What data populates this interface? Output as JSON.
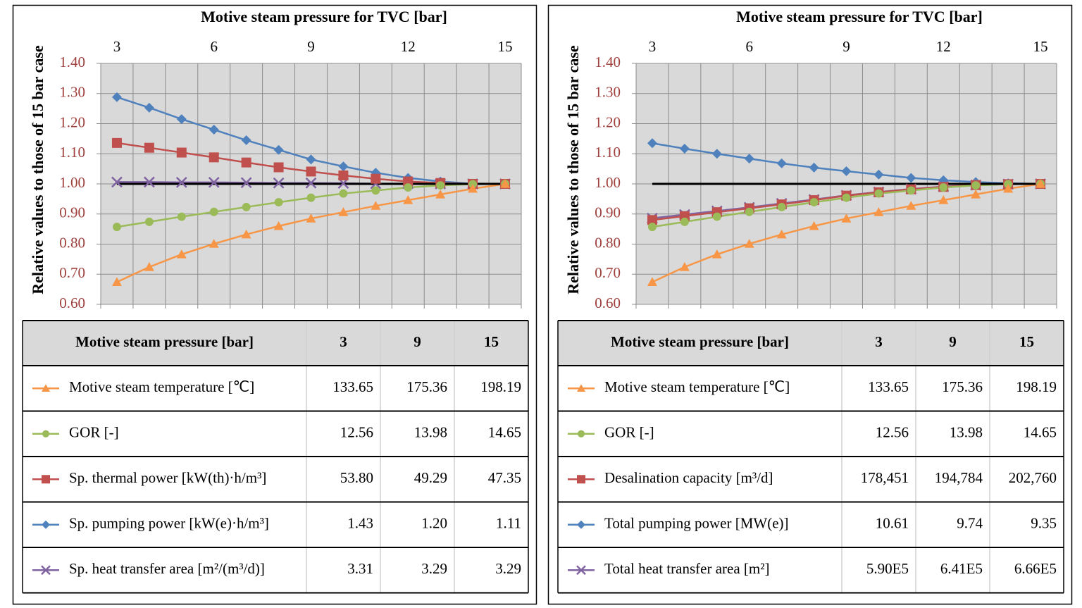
{
  "chart_data": [
    {
      "type": "line",
      "title": "Motive steam pressure for TVC [bar]",
      "y_label": "Relative values to those of 15 bar case",
      "x": [
        3,
        4,
        5,
        6,
        7,
        8,
        9,
        10,
        11,
        12,
        13,
        14,
        15
      ],
      "xlim": [
        2.5,
        15.5
      ],
      "xticks": [
        3,
        6,
        9,
        12,
        15
      ],
      "ylim": [
        0.6,
        1.4
      ],
      "yticks": [
        {
          "value": 0.6,
          "label": "0.60"
        },
        {
          "value": 0.7,
          "label": "0.70"
        },
        {
          "value": 0.8,
          "label": "0.80"
        },
        {
          "value": 0.9,
          "label": "0.90"
        },
        {
          "value": 1.0,
          "label": "1.00"
        },
        {
          "value": 1.1,
          "label": "1.10"
        },
        {
          "value": 1.2,
          "label": "1.20"
        },
        {
          "value": 1.3,
          "label": "1.30"
        },
        {
          "value": 1.4,
          "label": "1.40"
        }
      ],
      "grid": true,
      "hline": {
        "value": 1.0,
        "color": "#000000"
      },
      "series": [
        {
          "name": "Motive steam temperature [℃]",
          "color": "#f79646",
          "marker": "triangle",
          "values": [
            0.674,
            0.724,
            0.766,
            0.801,
            0.832,
            0.86,
            0.885,
            0.906,
            0.927,
            0.946,
            0.965,
            0.984,
            1.0
          ]
        },
        {
          "name": "GOR [-]",
          "color": "#9bbb59",
          "marker": "circle",
          "values": [
            0.857,
            0.874,
            0.891,
            0.907,
            0.923,
            0.939,
            0.954,
            0.968,
            0.978,
            0.988,
            0.995,
            0.999,
            1.0
          ]
        },
        {
          "name": "Sp. thermal power [kW(th)·h/m³]",
          "color": "#c0504d",
          "marker": "square",
          "values": [
            1.136,
            1.12,
            1.104,
            1.088,
            1.071,
            1.055,
            1.041,
            1.028,
            1.017,
            1.008,
            1.003,
            1.0,
            1.0
          ]
        },
        {
          "name": "Sp. pumping power [kW(e)·h/m³]",
          "color": "#4f81bd",
          "marker": "diamond",
          "values": [
            1.288,
            1.253,
            1.215,
            1.18,
            1.145,
            1.113,
            1.081,
            1.058,
            1.037,
            1.02,
            1.008,
            1.0,
            1.0
          ]
        },
        {
          "name": "Sp. heat transfer area [m²/(m³/d)]",
          "color": "#8064a2",
          "marker": "x",
          "values": [
            1.006,
            1.006,
            1.005,
            1.005,
            1.004,
            1.003,
            1.003,
            1.002,
            1.001,
            1.001,
            1.0,
            1.0,
            1.0
          ]
        }
      ],
      "table": {
        "header": [
          "Motive steam pressure [bar]",
          "3",
          "9",
          "15"
        ],
        "rows": [
          [
            "133.65",
            "175.36",
            "198.19"
          ],
          [
            "12.56",
            "13.98",
            "14.65"
          ],
          [
            "53.80",
            "49.29",
            "47.35"
          ],
          [
            "1.43",
            "1.20",
            "1.11"
          ],
          [
            "3.31",
            "3.29",
            "3.29"
          ]
        ]
      }
    },
    {
      "type": "line",
      "title": "Motive steam pressure for TVC [bar]",
      "y_label": "Relative values to those of 15 bar case",
      "x": [
        3,
        4,
        5,
        6,
        7,
        8,
        9,
        10,
        11,
        12,
        13,
        14,
        15
      ],
      "xlim": [
        2.5,
        15.5
      ],
      "xticks": [
        3,
        6,
        9,
        12,
        15
      ],
      "ylim": [
        0.6,
        1.4
      ],
      "yticks": [
        {
          "value": 0.6,
          "label": "0.60"
        },
        {
          "value": 0.7,
          "label": "0.70"
        },
        {
          "value": 0.8,
          "label": "0.80"
        },
        {
          "value": 0.9,
          "label": "0.90"
        },
        {
          "value": 1.0,
          "label": "1.00"
        },
        {
          "value": 1.1,
          "label": "1.10"
        },
        {
          "value": 1.2,
          "label": "1.20"
        },
        {
          "value": 1.3,
          "label": "1.30"
        },
        {
          "value": 1.4,
          "label": "1.40"
        }
      ],
      "grid": true,
      "hline": {
        "value": 1.0,
        "color": "#000000"
      },
      "series": [
        {
          "name": "Motive steam temperature [℃]",
          "color": "#f79646",
          "marker": "triangle",
          "values": [
            0.674,
            0.724,
            0.766,
            0.801,
            0.832,
            0.86,
            0.885,
            0.906,
            0.927,
            0.946,
            0.965,
            0.984,
            1.0
          ]
        },
        {
          "name": "GOR [-]",
          "color": "#9bbb59",
          "marker": "circle",
          "values": [
            0.857,
            0.874,
            0.891,
            0.907,
            0.923,
            0.939,
            0.954,
            0.968,
            0.978,
            0.988,
            0.995,
            0.999,
            1.0
          ]
        },
        {
          "name": "Desalination capacity [m³/d]",
          "color": "#c0504d",
          "marker": "square",
          "values": [
            0.88,
            0.893,
            0.906,
            0.919,
            0.932,
            0.946,
            0.961,
            0.972,
            0.982,
            0.99,
            0.996,
            0.999,
            1.0
          ]
        },
        {
          "name": "Total pumping power [MW(e)]",
          "color": "#4f81bd",
          "marker": "diamond",
          "values": [
            1.135,
            1.117,
            1.1,
            1.084,
            1.068,
            1.054,
            1.042,
            1.031,
            1.02,
            1.012,
            1.006,
            1.002,
            1.0
          ]
        },
        {
          "name": "Total heat transfer area [m²]",
          "color": "#8064a2",
          "marker": "x",
          "values": [
            0.886,
            0.898,
            0.91,
            0.922,
            0.935,
            0.948,
            0.962,
            0.973,
            0.983,
            0.991,
            0.996,
            0.999,
            1.0
          ]
        }
      ],
      "table": {
        "header": [
          "Motive steam pressure [bar]",
          "3",
          "9",
          "15"
        ],
        "rows": [
          [
            "133.65",
            "175.36",
            "198.19"
          ],
          [
            "12.56",
            "13.98",
            "14.65"
          ],
          [
            "178,451",
            "194,784",
            "202,760"
          ],
          [
            "10.61",
            "9.74",
            "9.35"
          ],
          [
            "5.90E5",
            "6.41E5",
            "6.66E5"
          ]
        ]
      }
    }
  ]
}
